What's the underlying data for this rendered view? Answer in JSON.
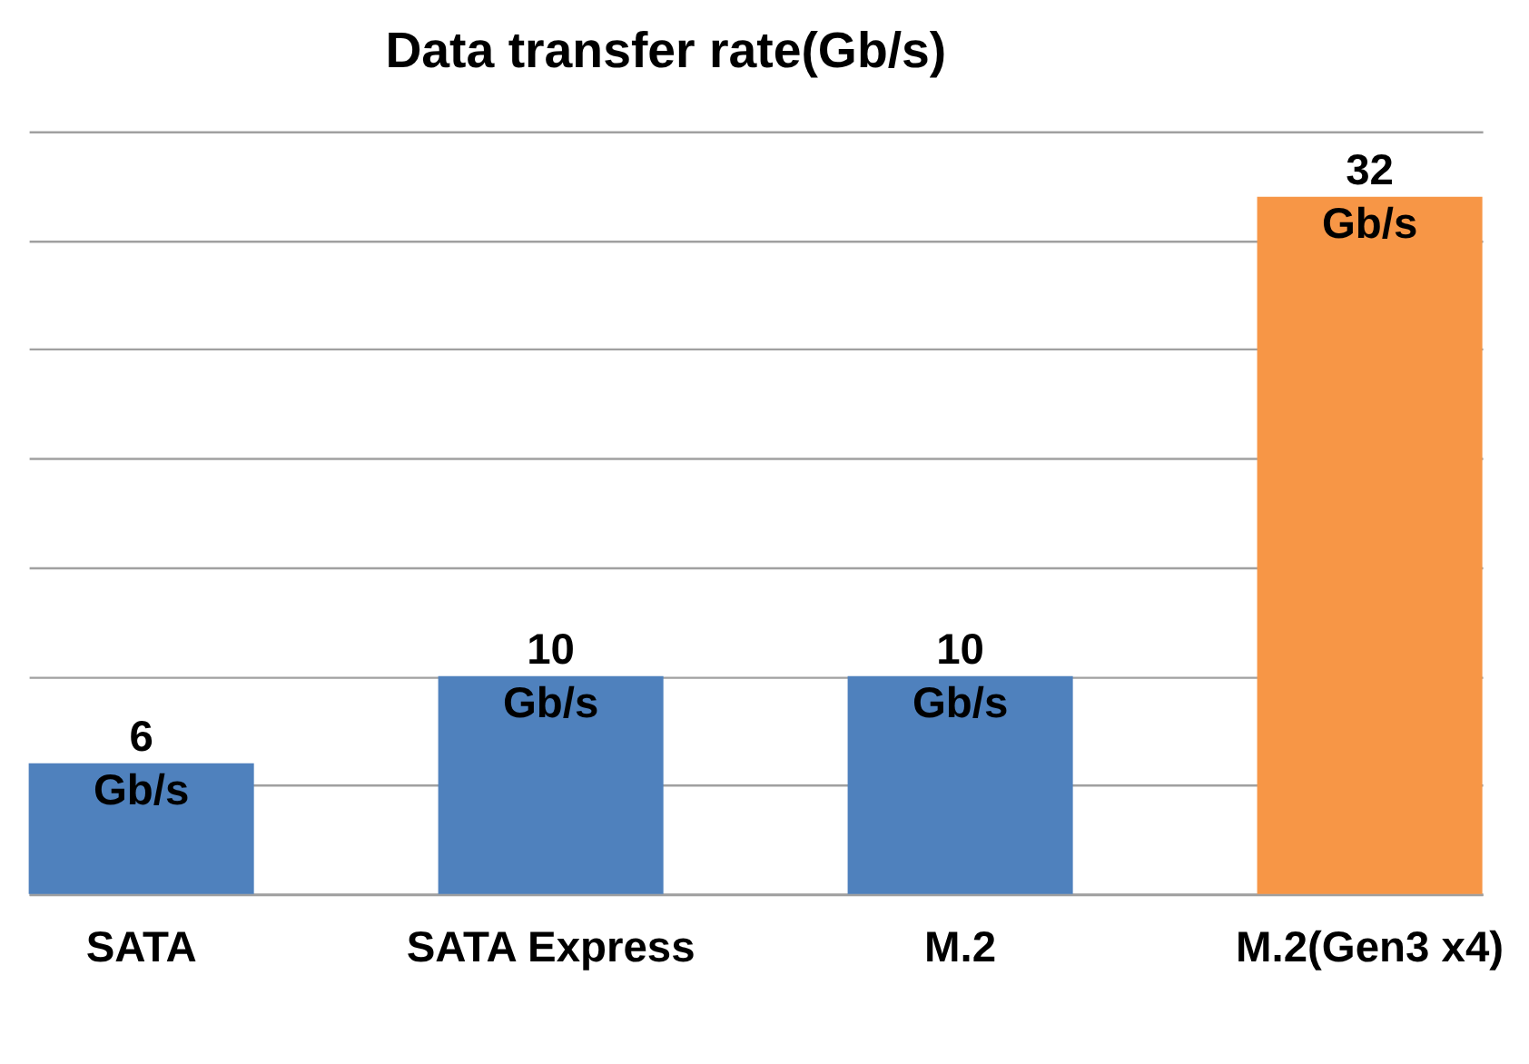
{
  "chart_data": {
    "type": "bar",
    "title": "Data transfer rate(Gb/s)",
    "categories": [
      "SATA",
      "SATA Express",
      "M.2",
      "M.2(Gen3 x4)"
    ],
    "values": [
      6,
      10,
      10,
      32
    ],
    "colors": [
      "#4f81bd",
      "#4f81bd",
      "#4f81bd",
      "#f79646"
    ],
    "value_labels": [
      "6 Gb/s",
      "10 Gb/s",
      "10 Gb/s",
      "32 Gb/s"
    ],
    "ylim": [
      0,
      35
    ],
    "yticks": [
      {
        "value": 0,
        "label": null
      },
      {
        "value": 5,
        "label": null
      },
      {
        "value": 10,
        "label": null
      },
      {
        "value": 15,
        "label": null
      },
      {
        "value": 20,
        "label": null
      },
      {
        "value": 25,
        "label": null
      },
      {
        "value": 30,
        "label": null
      },
      {
        "value": 35,
        "label": null
      }
    ],
    "grid": "y",
    "tick_labels": "x"
  }
}
